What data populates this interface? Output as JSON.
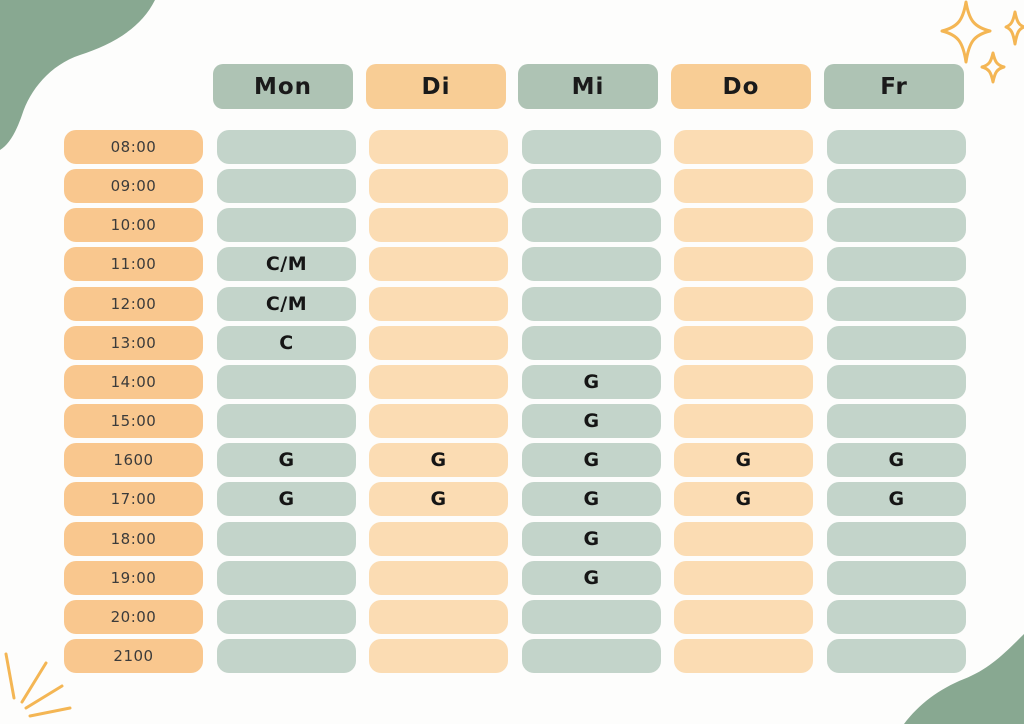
{
  "colors": {
    "green_header": "#aec3b4",
    "orange_header": "#f8cd95",
    "green_cell": "#c3d4ca",
    "orange_cell": "#fbdcb3",
    "time_cell": "#f9c78e",
    "blob": "#88a891",
    "sparkle": "#f4b654"
  },
  "days": [
    "Mon",
    "Di",
    "Mi",
    "Do",
    "Fr"
  ],
  "times": [
    "08:00",
    "09:00",
    "10:00",
    "11:00",
    "12:00",
    "13:00",
    "14:00",
    "15:00",
    "1600",
    "17:00",
    "18:00",
    "19:00",
    "20:00",
    "2100"
  ],
  "schedule": [
    [
      "",
      "",
      "",
      "",
      ""
    ],
    [
      "",
      "",
      "",
      "",
      ""
    ],
    [
      "",
      "",
      "",
      "",
      ""
    ],
    [
      "C/M",
      "",
      "",
      "",
      ""
    ],
    [
      "C/M",
      "",
      "",
      "",
      ""
    ],
    [
      "C",
      "",
      "",
      "",
      ""
    ],
    [
      "",
      "",
      "G",
      "",
      ""
    ],
    [
      "",
      "",
      "G",
      "",
      ""
    ],
    [
      "G",
      "G",
      "G",
      "G",
      "G"
    ],
    [
      "G",
      "G",
      "G",
      "G",
      "G"
    ],
    [
      "",
      "",
      "G",
      "",
      ""
    ],
    [
      "",
      "",
      "G",
      "",
      ""
    ],
    [
      "",
      "",
      "",
      "",
      ""
    ],
    [
      "",
      "",
      "",
      "",
      ""
    ]
  ]
}
